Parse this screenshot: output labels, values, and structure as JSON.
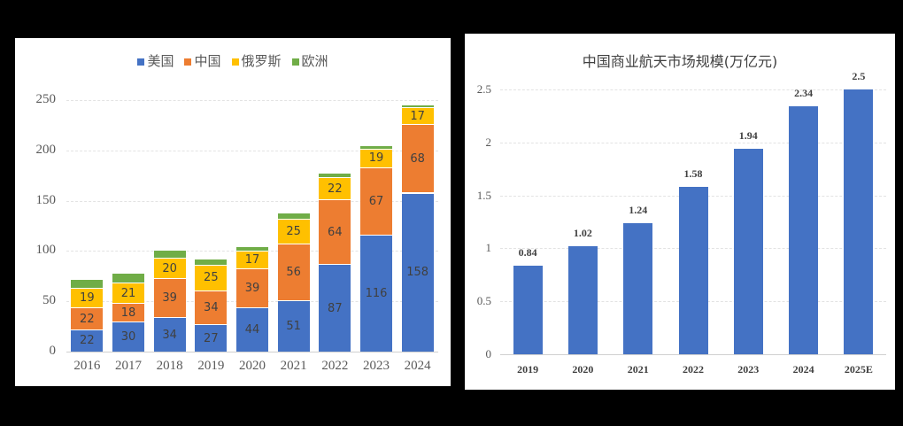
{
  "chart_data": [
    {
      "type": "bar",
      "stacked": true,
      "title": "",
      "categories": [
        "2016",
        "2017",
        "2018",
        "2019",
        "2020",
        "2021",
        "2022",
        "2023",
        "2024"
      ],
      "series": [
        {
          "name": "美国",
          "color": "#4472c4",
          "values": [
            22,
            30,
            34,
            27,
            44,
            51,
            87,
            116,
            158
          ]
        },
        {
          "name": "中国",
          "color": "#ed7d31",
          "values": [
            22,
            18,
            39,
            34,
            39,
            56,
            64,
            67,
            68
          ]
        },
        {
          "name": "俄罗斯",
          "color": "#ffc000",
          "values": [
            19,
            21,
            20,
            25,
            17,
            25,
            22,
            19,
            17
          ]
        },
        {
          "name": "欧洲",
          "color": "#70ad47",
          "values": [
            9,
            9,
            8,
            6,
            5,
            6,
            5,
            3,
            3
          ]
        }
      ],
      "yticks": [
        "0",
        "50",
        "100",
        "150",
        "200",
        "250"
      ],
      "ylim": [
        0,
        250
      ],
      "xlabel": "",
      "ylabel": "",
      "legend_position": "top",
      "grid": true
    },
    {
      "type": "bar",
      "title": "中国商业航天市场规模(万亿元)",
      "categories": [
        "2019",
        "2020",
        "2021",
        "2022",
        "2023",
        "2024",
        "2025E"
      ],
      "values": [
        0.84,
        1.02,
        1.24,
        1.58,
        1.94,
        2.34,
        2.5
      ],
      "labels": [
        "0.84",
        "1.02",
        "1.24",
        "1.58",
        "1.94",
        "2.34",
        "2.5"
      ],
      "color": "#4472c4",
      "yticks": [
        "0",
        "0.5",
        "1",
        "1.5",
        "2",
        "2.5"
      ],
      "ylim": [
        0,
        2.5
      ],
      "xlabel": "",
      "ylabel": "",
      "grid": true
    }
  ]
}
